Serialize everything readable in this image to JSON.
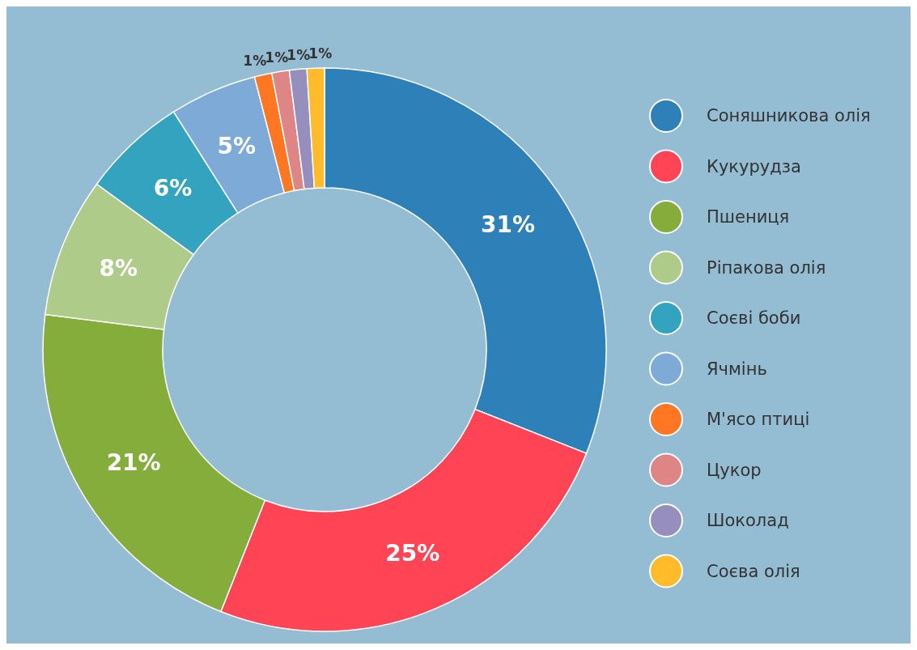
{
  "chart_data": {
    "type": "donut",
    "categories": [
      "Соняшникова олія",
      "Кукурудза",
      "Пшениця",
      "Ріпакова олія",
      "Соєві боби",
      "Ячмінь",
      "М'ясо птиці",
      "Цукор",
      "Шоколад",
      "Соєва олія"
    ],
    "values": [
      31,
      25,
      21,
      8,
      6,
      5,
      1,
      1,
      1,
      1
    ],
    "value_labels": [
      "31%",
      "25%",
      "21%",
      "8%",
      "6%",
      "5%",
      "1%",
      "1%",
      "1%",
      "1%"
    ],
    "colors": [
      "#2e80b8",
      "#ff4455",
      "#84ad3c",
      "#aecb8a",
      "#33a3bf",
      "#7eaad8",
      "#ff7722",
      "#de8585",
      "#968fbd",
      "#ffbb2a"
    ],
    "legend": "right"
  }
}
